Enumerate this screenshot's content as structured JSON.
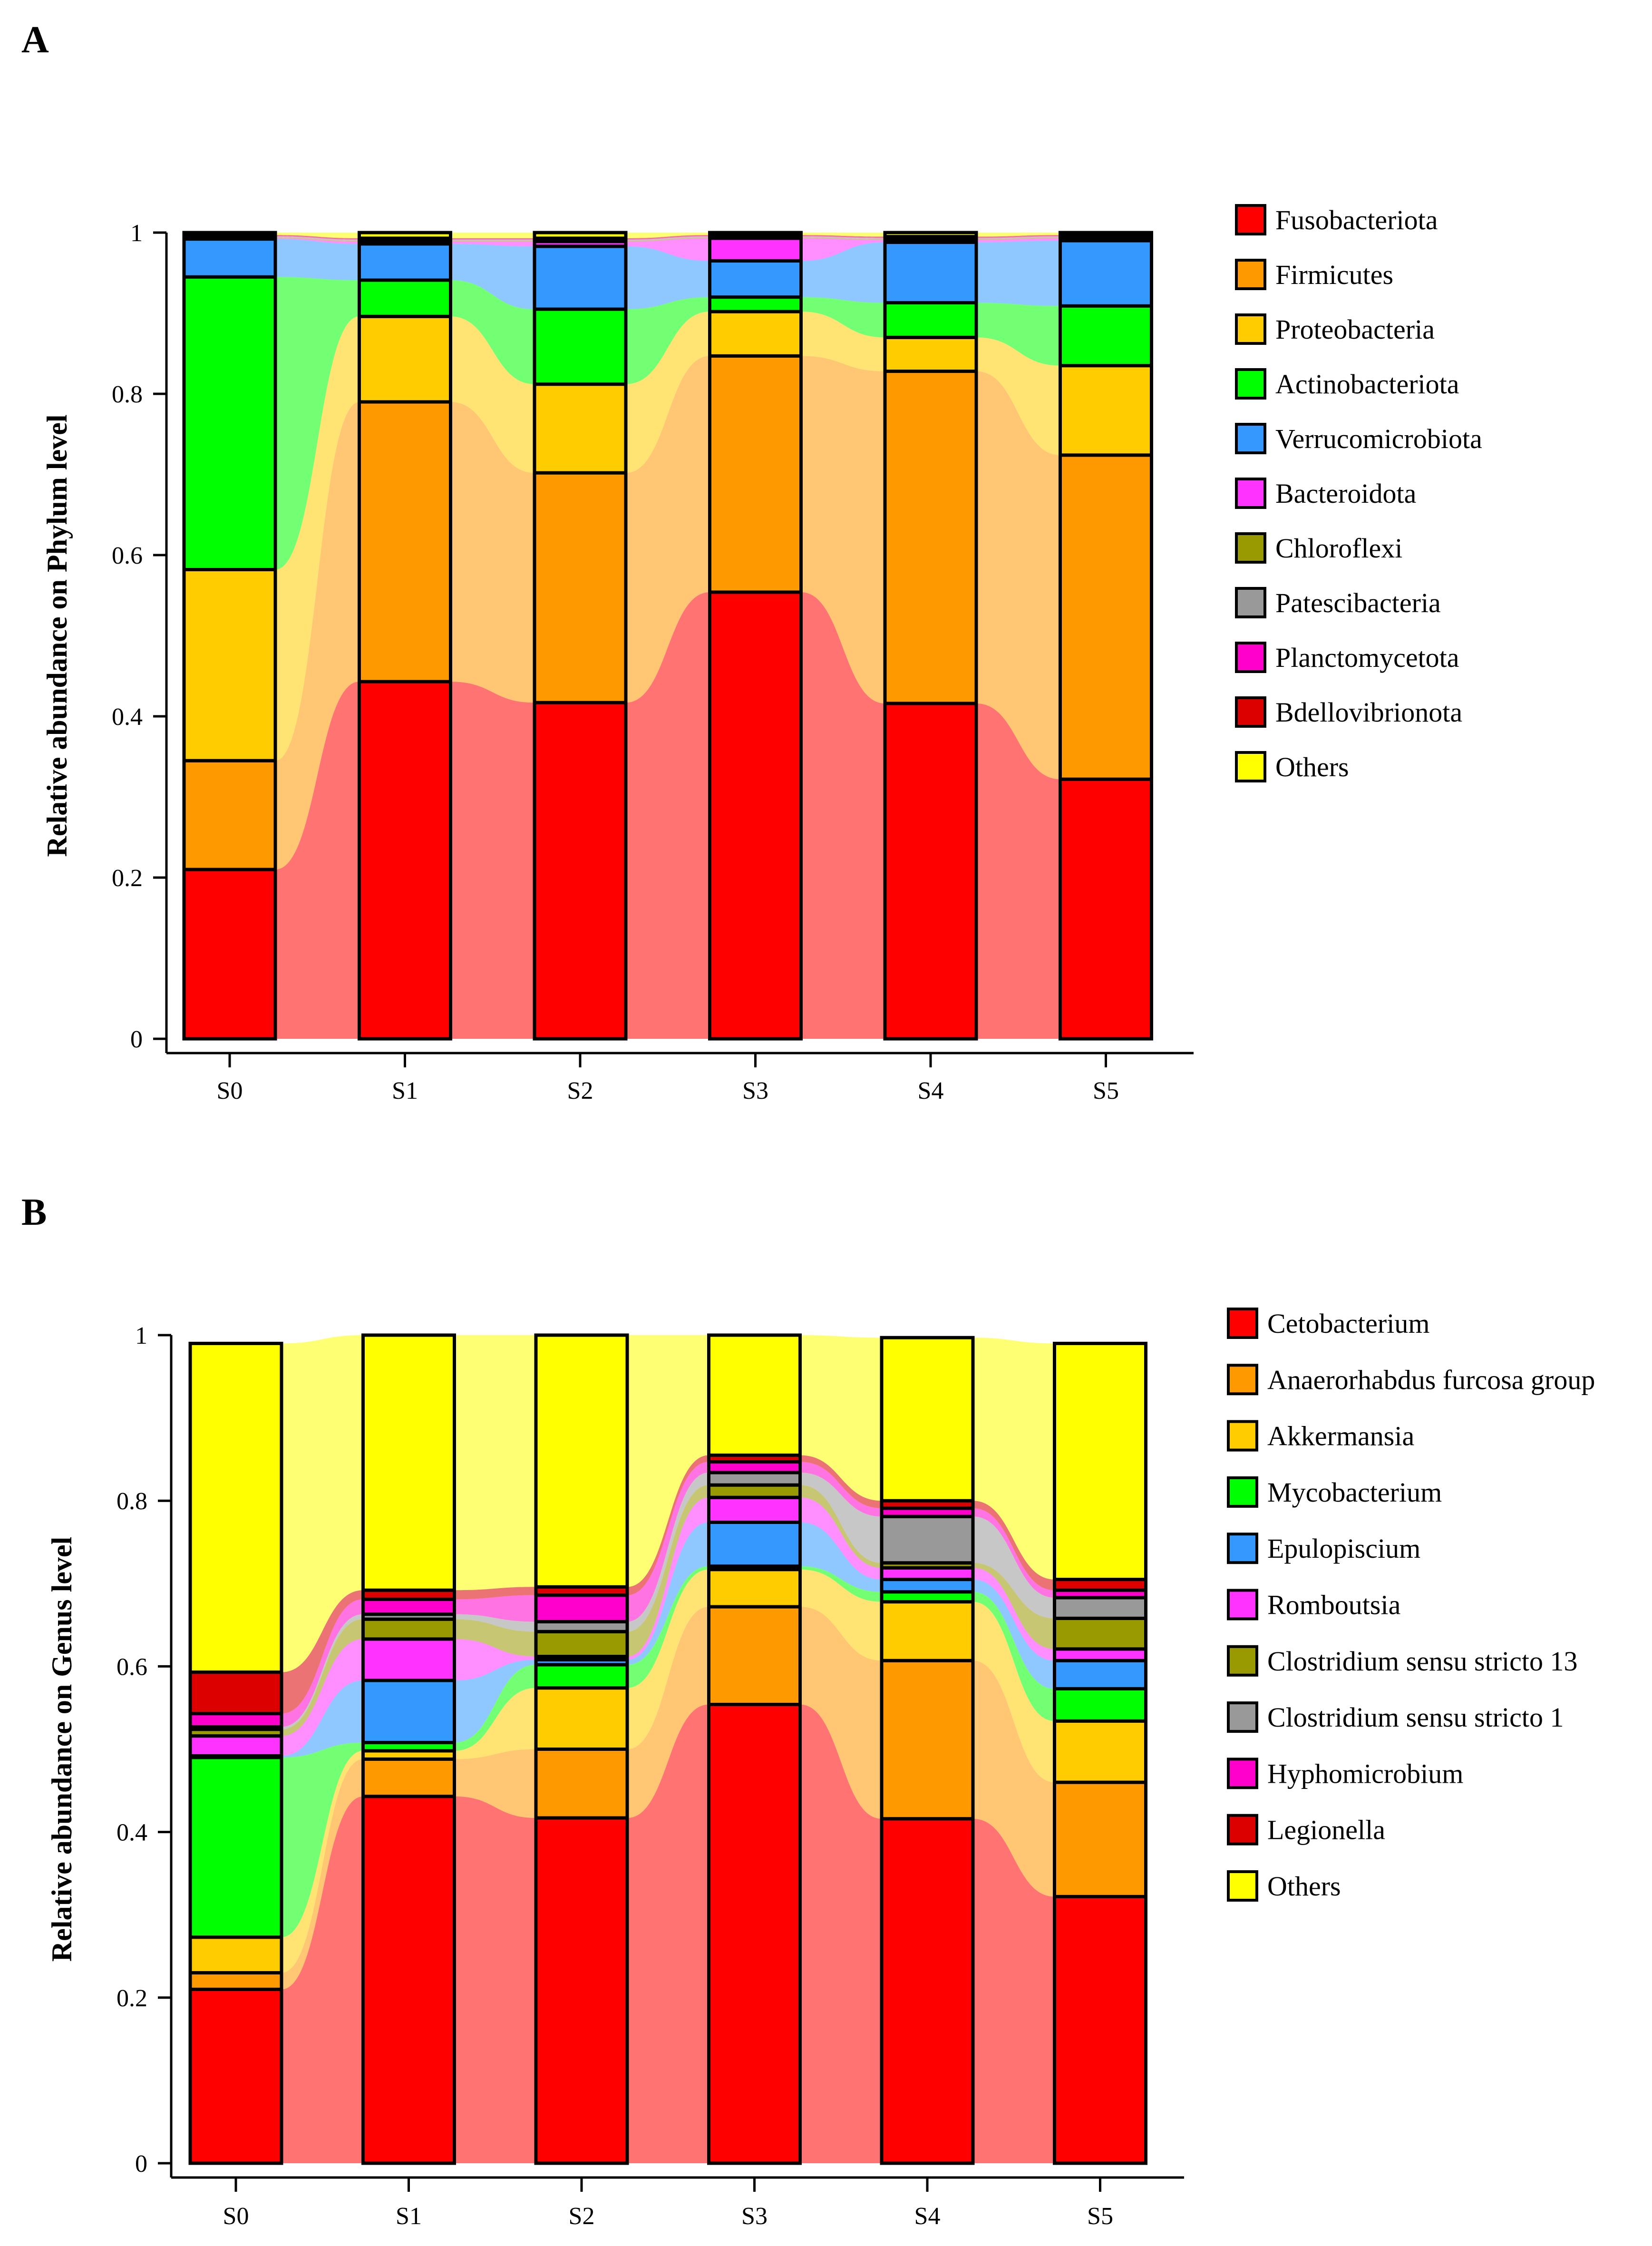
{
  "chart_data": [
    {
      "panel": "A",
      "type": "bar",
      "stacked": true,
      "title": "",
      "xlabel": "",
      "ylabel": "Relative abundance on Phylum level",
      "ylim": [
        0,
        1
      ],
      "yticks": [
        "0",
        "0.2",
        "0.4",
        "0.6",
        "0.8",
        "1"
      ],
      "categories": [
        "S0",
        "S1",
        "S2",
        "S3",
        "S4",
        "S5"
      ],
      "series": [
        {
          "name": "Fusobacteriota",
          "color": "#ff0000",
          "values": [
            0.21,
            0.443,
            0.417,
            0.554,
            0.416,
            0.322
          ]
        },
        {
          "name": "Firmicutes",
          "color": "#ff9900",
          "values": [
            0.135,
            0.347,
            0.285,
            0.293,
            0.412,
            0.402
          ]
        },
        {
          "name": "Proteobacteria",
          "color": "#ffcc00",
          "values": [
            0.237,
            0.106,
            0.11,
            0.055,
            0.042,
            0.111
          ]
        },
        {
          "name": "Actinobacteriota",
          "color": "#00ff00",
          "values": [
            0.363,
            0.045,
            0.093,
            0.018,
            0.043,
            0.074
          ]
        },
        {
          "name": "Verrucomicrobiota",
          "color": "#3399ff",
          "values": [
            0.047,
            0.045,
            0.078,
            0.045,
            0.075,
            0.081
          ]
        },
        {
          "name": "Bacteroidota",
          "color": "#ff33ff",
          "values": [
            0.001,
            0.003,
            0.006,
            0.028,
            0.003,
            0.003
          ]
        },
        {
          "name": "Chloroflexi",
          "color": "#999900",
          "values": [
            0.001,
            0.001,
            0.001,
            0.001,
            0.001,
            0.001
          ]
        },
        {
          "name": "Patescibacteria",
          "color": "#999999",
          "values": [
            0.001,
            0.001,
            0.001,
            0.001,
            0.001,
            0.001
          ]
        },
        {
          "name": "Planctomycetota",
          "color": "#ff00cc",
          "values": [
            0.001,
            0.001,
            0.001,
            0.001,
            0.001,
            0.001
          ]
        },
        {
          "name": "Bdellovibrionota",
          "color": "#dd0000",
          "values": [
            0.001,
            0.001,
            0.001,
            0.001,
            0.001,
            0.001
          ]
        },
        {
          "name": "Others",
          "color": "#ffff00",
          "values": [
            0.003,
            0.007,
            0.007,
            0.003,
            0.005,
            0.003
          ]
        }
      ]
    },
    {
      "panel": "B",
      "type": "bar",
      "stacked": true,
      "title": "",
      "xlabel": "",
      "ylabel": "Relative abundance on Genus level",
      "ylim": [
        0,
        1
      ],
      "yticks": [
        "0",
        "0.2",
        "0.4",
        "0.6",
        "0.8",
        "1"
      ],
      "categories": [
        "S0",
        "S1",
        "S2",
        "S3",
        "S4",
        "S5"
      ],
      "series": [
        {
          "name": "Cetobacterium",
          "color": "#ff0000",
          "values": [
            0.21,
            0.443,
            0.417,
            0.554,
            0.416,
            0.322
          ]
        },
        {
          "name": "Anaerorhabdus furcosa group",
          "color": "#ff9900",
          "values": [
            0.02,
            0.045,
            0.083,
            0.118,
            0.191,
            0.138
          ]
        },
        {
          "name": "Akkermansia",
          "color": "#ffcc00",
          "values": [
            0.043,
            0.01,
            0.074,
            0.045,
            0.071,
            0.074
          ]
        },
        {
          "name": "Mycobacterium",
          "color": "#00ff00",
          "values": [
            0.217,
            0.01,
            0.028,
            0.004,
            0.012,
            0.039
          ]
        },
        {
          "name": "Epulopiscium",
          "color": "#3399ff",
          "values": [
            0.002,
            0.075,
            0.006,
            0.053,
            0.015,
            0.034
          ]
        },
        {
          "name": "Romboutsia",
          "color": "#ff33ff",
          "values": [
            0.024,
            0.05,
            0.004,
            0.03,
            0.014,
            0.014
          ]
        },
        {
          "name": "Clostridium sensu stricto 13",
          "color": "#999900",
          "values": [
            0.008,
            0.024,
            0.03,
            0.015,
            0.006,
            0.037
          ]
        },
        {
          "name": "Clostridium sensu stricto 1",
          "color": "#999999",
          "values": [
            0.003,
            0.006,
            0.012,
            0.015,
            0.056,
            0.025
          ]
        },
        {
          "name": "Hyphomicrobium",
          "color": "#ff00cc",
          "values": [
            0.016,
            0.018,
            0.032,
            0.013,
            0.01,
            0.009
          ]
        },
        {
          "name": "Legionella",
          "color": "#dd0000",
          "values": [
            0.05,
            0.011,
            0.01,
            0.008,
            0.009,
            0.013
          ]
        },
        {
          "name": "Others",
          "color": "#ffff00",
          "values": [
            0.397,
            0.308,
            0.304,
            0.145,
            0.197,
            0.285
          ]
        }
      ]
    }
  ]
}
